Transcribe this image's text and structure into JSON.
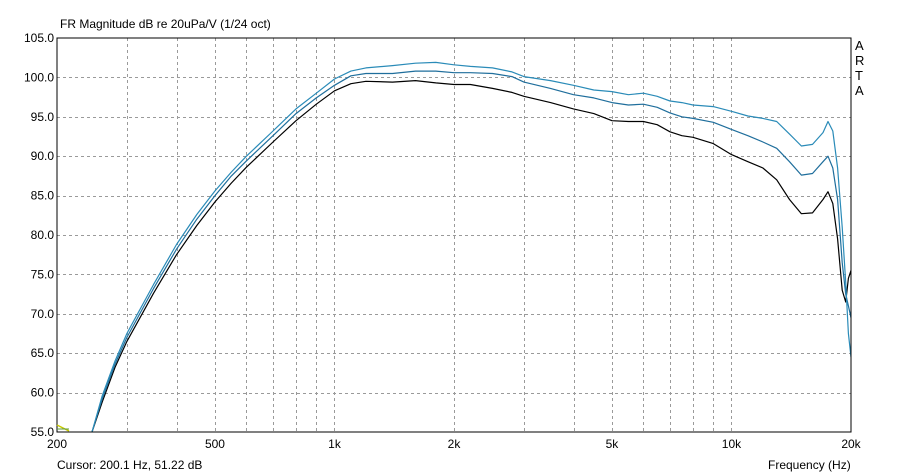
{
  "chart_data": {
    "type": "line",
    "title": "FR Magnitude dB re 20uPa/V (1/24 oct)",
    "xlabel": "Frequency (Hz)",
    "ylabel": "",
    "x_scale": "log",
    "xlim": [
      200,
      20000
    ],
    "ylim": [
      55,
      105
    ],
    "x_ticks": [
      200,
      500,
      1000,
      2000,
      5000,
      10000,
      20000
    ],
    "x_tick_labels": [
      "200",
      "500",
      "1k",
      "2k",
      "5k",
      "10k",
      "20k"
    ],
    "x_minor_grid": [
      300,
      400,
      600,
      700,
      800,
      900,
      3000,
      4000,
      6000,
      7000,
      8000,
      9000
    ],
    "y_ticks": [
      55,
      60,
      65,
      70,
      75,
      80,
      85,
      90,
      95,
      100,
      105
    ],
    "y_tick_labels": [
      "55.0",
      "60.0",
      "65.0",
      "70.0",
      "75.0",
      "80.0",
      "85.0",
      "90.0",
      "95.0",
      "100.0",
      "105.0"
    ],
    "grid": true,
    "series": [
      {
        "color": "#000000",
        "points": [
          [
            245,
            55
          ],
          [
            260,
            58.8
          ],
          [
            280,
            63.2
          ],
          [
            300,
            66.5
          ],
          [
            350,
            72.6
          ],
          [
            400,
            77.5
          ],
          [
            450,
            81.2
          ],
          [
            500,
            84.2
          ],
          [
            550,
            86.6
          ],
          [
            600,
            88.6
          ],
          [
            700,
            91.8
          ],
          [
            800,
            94.5
          ],
          [
            900,
            96.6
          ],
          [
            1000,
            98.3
          ],
          [
            1100,
            99.2
          ],
          [
            1200,
            99.5
          ],
          [
            1400,
            99.4
          ],
          [
            1600,
            99.6
          ],
          [
            1800,
            99.3
          ],
          [
            2000,
            99.1
          ],
          [
            2200,
            99.1
          ],
          [
            2500,
            98.6
          ],
          [
            2800,
            98.1
          ],
          [
            3000,
            97.6
          ],
          [
            3500,
            96.8
          ],
          [
            4000,
            96
          ],
          [
            4500,
            95.4
          ],
          [
            5000,
            94.5
          ],
          [
            5500,
            94.4
          ],
          [
            6000,
            94.4
          ],
          [
            6500,
            94
          ],
          [
            7000,
            93.1
          ],
          [
            7500,
            92.6
          ],
          [
            8000,
            92.4
          ],
          [
            9000,
            91.6
          ],
          [
            10000,
            90.2
          ],
          [
            11000,
            89.3
          ],
          [
            12000,
            88.5
          ],
          [
            13000,
            87
          ],
          [
            14000,
            84.5
          ],
          [
            15000,
            82.7
          ],
          [
            16000,
            82.8
          ],
          [
            17000,
            84.5
          ],
          [
            17500,
            85.5
          ],
          [
            18000,
            84
          ],
          [
            18500,
            79.5
          ],
          [
            19000,
            73
          ],
          [
            19400,
            71.5
          ],
          [
            19700,
            74.5
          ],
          [
            20000,
            75.5
          ]
        ]
      },
      {
        "color": "#1f6e9c",
        "points": [
          [
            245,
            55
          ],
          [
            260,
            59.2
          ],
          [
            280,
            63.6
          ],
          [
            300,
            67
          ],
          [
            350,
            73.2
          ],
          [
            400,
            78.2
          ],
          [
            450,
            82
          ],
          [
            500,
            85
          ],
          [
            550,
            87.5
          ],
          [
            600,
            89.4
          ],
          [
            700,
            92.6
          ],
          [
            800,
            95.4
          ],
          [
            900,
            97.4
          ],
          [
            1000,
            99
          ],
          [
            1100,
            100.2
          ],
          [
            1200,
            100.5
          ],
          [
            1400,
            100.5
          ],
          [
            1600,
            100.8
          ],
          [
            1800,
            100.8
          ],
          [
            2000,
            100.6
          ],
          [
            2200,
            100.6
          ],
          [
            2500,
            100.5
          ],
          [
            2800,
            100.1
          ],
          [
            3000,
            99.4
          ],
          [
            3500,
            98.6
          ],
          [
            4000,
            97.8
          ],
          [
            4500,
            97.4
          ],
          [
            5000,
            96.8
          ],
          [
            5500,
            96.5
          ],
          [
            6000,
            96.6
          ],
          [
            6500,
            96.2
          ],
          [
            7000,
            95.5
          ],
          [
            7500,
            95
          ],
          [
            8000,
            94.8
          ],
          [
            9000,
            94.3
          ],
          [
            10000,
            93.4
          ],
          [
            11000,
            92.6
          ],
          [
            12000,
            91.8
          ],
          [
            13000,
            91
          ],
          [
            14000,
            89.3
          ],
          [
            15000,
            87.6
          ],
          [
            16000,
            87.8
          ],
          [
            17000,
            89.3
          ],
          [
            17500,
            90
          ],
          [
            18000,
            88.5
          ],
          [
            18500,
            84.5
          ],
          [
            19000,
            76.5
          ],
          [
            19400,
            72.5
          ],
          [
            19700,
            71
          ],
          [
            20000,
            69.5
          ]
        ]
      },
      {
        "color": "#2a8bb8",
        "points": [
          [
            245,
            55
          ],
          [
            260,
            59.6
          ],
          [
            280,
            64
          ],
          [
            300,
            67.5
          ],
          [
            350,
            73.7
          ],
          [
            400,
            78.8
          ],
          [
            450,
            82.6
          ],
          [
            500,
            85.6
          ],
          [
            550,
            88
          ],
          [
            600,
            90
          ],
          [
            700,
            93.2
          ],
          [
            800,
            96
          ],
          [
            900,
            98
          ],
          [
            1000,
            99.8
          ],
          [
            1100,
            100.8
          ],
          [
            1200,
            101.2
          ],
          [
            1400,
            101.5
          ],
          [
            1600,
            101.8
          ],
          [
            1800,
            101.9
          ],
          [
            2000,
            101.6
          ],
          [
            2200,
            101.4
          ],
          [
            2500,
            101.2
          ],
          [
            2800,
            100.7
          ],
          [
            3000,
            100.1
          ],
          [
            3500,
            99.6
          ],
          [
            4000,
            99
          ],
          [
            4500,
            98.4
          ],
          [
            5000,
            98.2
          ],
          [
            5500,
            97.8
          ],
          [
            6000,
            98
          ],
          [
            6500,
            97.6
          ],
          [
            7000,
            97
          ],
          [
            7500,
            96.8
          ],
          [
            8000,
            96.5
          ],
          [
            9000,
            96.3
          ],
          [
            10000,
            95.7
          ],
          [
            11000,
            95.1
          ],
          [
            12000,
            94.8
          ],
          [
            13000,
            94.4
          ],
          [
            14000,
            92.8
          ],
          [
            15000,
            91.3
          ],
          [
            16000,
            91.5
          ],
          [
            17000,
            93
          ],
          [
            17500,
            94.4
          ],
          [
            18000,
            93.2
          ],
          [
            18500,
            88.5
          ],
          [
            19000,
            81
          ],
          [
            19400,
            74
          ],
          [
            19700,
            67.5
          ],
          [
            20000,
            64.5
          ]
        ]
      }
    ],
    "cursor_text": "Cursor: 200.1 Hz, 51.22 dB",
    "watermark_letters": [
      "A",
      "R",
      "T",
      "A"
    ]
  }
}
